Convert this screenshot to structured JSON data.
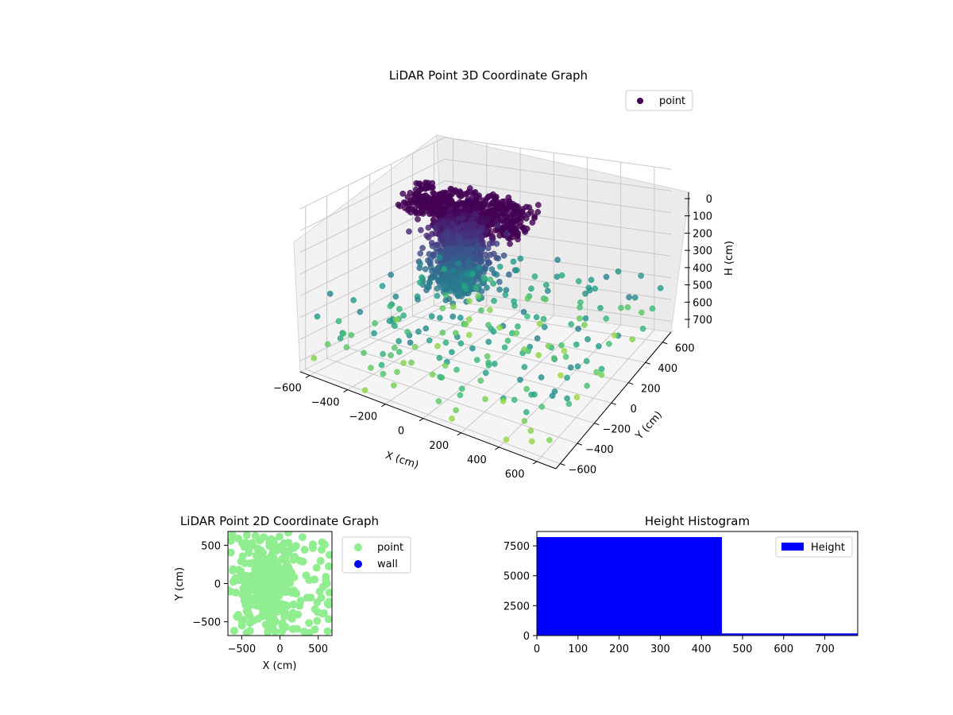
{
  "chart_data": [
    {
      "type": "scatter",
      "projection": "3d",
      "title": "LiDAR Point 3D Coordinate Graph",
      "xlabel": "X (cm)",
      "ylabel": "Y (cm)",
      "zlabel": "H (cm)",
      "xlim": [
        -650,
        700
      ],
      "ylim": [
        -650,
        700
      ],
      "zlim": [
        750,
        0
      ],
      "z_axis_inverted": true,
      "x_ticks": [
        "−600",
        "−400",
        "−200",
        "0",
        "200",
        "400",
        "600"
      ],
      "y_ticks": [
        "−600",
        "−400",
        "−200",
        "0",
        "200",
        "400",
        "600"
      ],
      "z_ticks": [
        "0",
        "100",
        "200",
        "300",
        "400",
        "500",
        "600",
        "700"
      ],
      "legend": {
        "position": "top-right",
        "entries": [
          "point"
        ]
      },
      "colormap": "viridis (colored by height)",
      "point_color": "#440154",
      "series": [
        {
          "name": "point",
          "description": "~8400 LiDAR points; dense column near x≈-150..100, y≈-100..100, h≈0..420; sparse points spread to ±650 at h 450..750",
          "clusters": [
            {
              "label": "dense top layer",
              "x_range": [
                -400,
                200
              ],
              "y_range": [
                -150,
                150
              ],
              "h_range": [
                0,
                80
              ],
              "approx_count": 2500
            },
            {
              "label": "dense column",
              "x_range": [
                -200,
                150
              ],
              "y_range": [
                -150,
                150
              ],
              "h_range": [
                80,
                420
              ],
              "approx_count": 5700
            },
            {
              "label": "sparse lower points",
              "x_range": [
                -650,
                700
              ],
              "y_range": [
                -650,
                700
              ],
              "h_range": [
                420,
                750
              ],
              "approx_count": 200
            }
          ]
        }
      ]
    },
    {
      "type": "scatter",
      "title": "LiDAR Point 2D Coordinate Graph",
      "xlabel": "X (cm)",
      "ylabel": "Y (cm)",
      "xlim": [
        -680,
        680
      ],
      "ylim": [
        -680,
        680
      ],
      "x_ticks": [
        -500,
        0,
        500
      ],
      "y_ticks": [
        -500,
        0,
        500
      ],
      "legend": {
        "position": "outside-right",
        "entries": [
          "point",
          "wall"
        ]
      },
      "series": [
        {
          "name": "point",
          "color": "#90ee90",
          "description": "dense cloud covering most of the plot area, densest around x≈-250..100"
        },
        {
          "name": "wall",
          "color": "#0000ff",
          "values": []
        }
      ]
    },
    {
      "type": "bar",
      "subtype": "histogram",
      "title": "Height Histogram",
      "xlabel": "",
      "ylabel": "",
      "xlim": [
        0,
        780
      ],
      "ylim": [
        0,
        8700
      ],
      "x_ticks": [
        0,
        100,
        200,
        300,
        400,
        500,
        600,
        700
      ],
      "y_ticks": [
        0,
        2500,
        5000,
        7500
      ],
      "legend": {
        "position": "top-right",
        "entries": [
          "Height"
        ]
      },
      "color": "#0000ff",
      "series": [
        {
          "name": "Height",
          "bins": [
            [
              0,
              450,
              8230
            ],
            [
              450,
              780,
              180
            ]
          ]
        }
      ]
    }
  ]
}
